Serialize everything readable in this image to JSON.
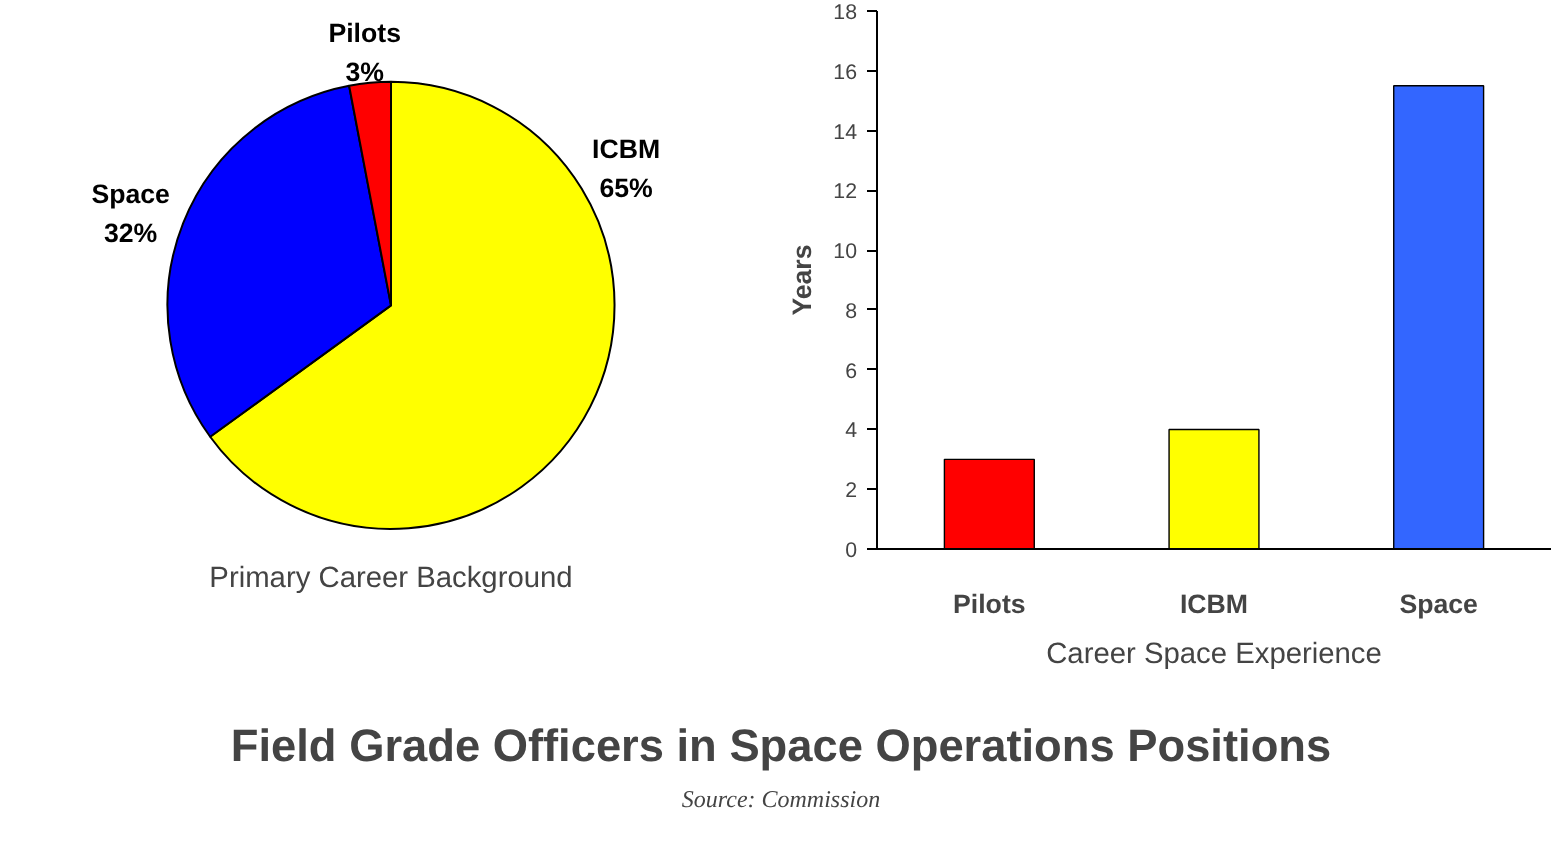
{
  "chart_data": [
    {
      "type": "pie",
      "title": "Primary Career Background",
      "categories": [
        "ICBM",
        "Space",
        "Pilots"
      ],
      "values": [
        65,
        32,
        3
      ],
      "colors": [
        "#ffff00",
        "#0000ff",
        "#ff0000"
      ],
      "value_labels": [
        "65%",
        "32%",
        "3%"
      ]
    },
    {
      "type": "bar",
      "title": "Career Space Experience",
      "ylabel": "Years",
      "categories": [
        "Pilots",
        "ICBM",
        "Space"
      ],
      "values": [
        3.0,
        4.0,
        15.5
      ],
      "colors": [
        "#ff0000",
        "#ffff00",
        "#3366ff"
      ],
      "ylim": [
        0,
        18
      ],
      "yticks": [
        0,
        2,
        4,
        6,
        8,
        10,
        12,
        14,
        16,
        18
      ],
      "grid": false
    },
    {
      "type": "other",
      "title": "Field Grade Officers in Space Operations Positions",
      "annotations": [
        "Source: Commission"
      ]
    }
  ]
}
